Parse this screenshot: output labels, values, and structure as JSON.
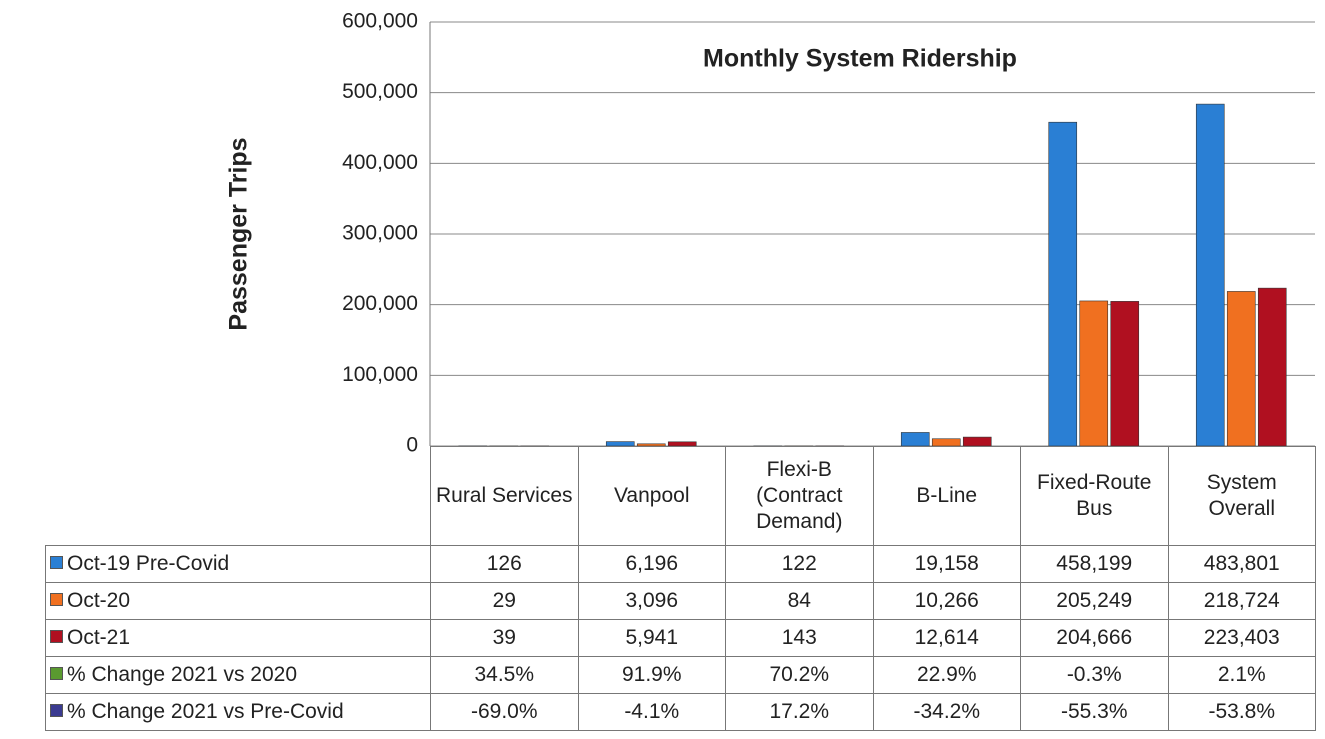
{
  "chart_data": {
    "type": "bar",
    "title": "Monthly System Ridership",
    "y_label": "Passenger Trips",
    "categories": [
      "Rural Services",
      "Vanpool",
      "Flexi-B (Contract Demand)",
      "B-Line",
      "Fixed-Route Bus",
      "System Overall"
    ],
    "series": [
      {
        "name": "Oct-19 Pre-Covid",
        "color": "#2a7fd4",
        "values": [
          126,
          6196,
          122,
          19158,
          458199,
          483801
        ],
        "value_labels": [
          "126",
          "6,196",
          "122",
          "19,158",
          "458,199",
          "483,801"
        ]
      },
      {
        "name": "Oct-20",
        "color": "#f07020",
        "values": [
          29,
          3096,
          84,
          10266,
          205249,
          218724
        ],
        "value_labels": [
          "29",
          "3,096",
          "84",
          "10,266",
          "205,249",
          "218,724"
        ]
      },
      {
        "name": "Oct-21",
        "color": "#b01020",
        "values": [
          39,
          5941,
          143,
          12614,
          204666,
          223403
        ],
        "value_labels": [
          "39",
          "5,941",
          "143",
          "12,614",
          "204,666",
          "223,403"
        ]
      }
    ],
    "table_series": [
      {
        "name": "% Change 2021 vs 2020",
        "color": "#5a9a30",
        "values": [
          34.5,
          91.9,
          70.2,
          22.9,
          -0.3,
          2.1
        ],
        "value_labels": [
          "34.5%",
          "91.9%",
          "70.2%",
          "22.9%",
          "-0.3%",
          "2.1%"
        ]
      },
      {
        "name": "% Change 2021 vs Pre-Covid",
        "color": "#3a3a90",
        "values": [
          -69.0,
          -4.1,
          17.2,
          -34.2,
          -55.3,
          -53.8
        ],
        "value_labels": [
          "-69.0%",
          "-4.1%",
          "17.2%",
          "-34.2%",
          "-55.3%",
          "-53.8%"
        ]
      }
    ],
    "ylim": [
      0,
      600000
    ],
    "yticks": [
      0,
      {
        "value": 100000,
        "label": "100,000"
      },
      {
        "value": 200000,
        "label": "200,000"
      },
      {
        "value": 300000,
        "label": "300,000"
      },
      {
        "value": 400000,
        "label": "400,000"
      },
      {
        "value": 500000,
        "label": "500,000"
      },
      {
        "value": 600000,
        "label": "600,000"
      }
    ],
    "grid": true
  }
}
